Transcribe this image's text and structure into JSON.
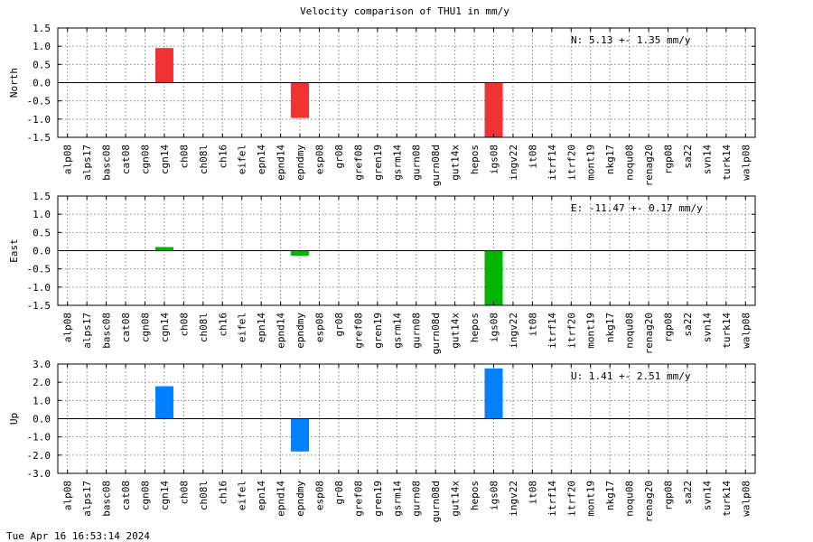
{
  "title": "Velocity comparison of THU1 in mm/y",
  "timestamp": "Tue Apr 16 16:53:14 2024",
  "chart_data": [
    {
      "type": "bar",
      "ylabel": "North",
      "annotation": "N:   5.13 +-  1.35 mm/y",
      "color": "#f03232",
      "ylim": [
        -1.5,
        1.5
      ],
      "yticks": [
        1.5,
        1.0,
        0.5,
        0.0,
        -0.5,
        -1.0,
        -1.5
      ],
      "yticklabels": [
        "1.5",
        "1.0",
        "0.5",
        "0.0",
        "-0.5",
        "-1.0",
        "-1.5"
      ],
      "grid": true,
      "categories": [
        "alp08",
        "alps17",
        "basc08",
        "cat08",
        "cgn08",
        "cgn14",
        "ch08",
        "ch08l",
        "ch16",
        "eifel",
        "epn14",
        "epnd14",
        "epndmy",
        "esp08",
        "gr08",
        "gref08",
        "gren19",
        "gsrm14",
        "gurn08",
        "gurn08d",
        "gut14x",
        "hepos",
        "igs08",
        "ingv22",
        "it08",
        "itrf14",
        "itrf20",
        "mont19",
        "nkg17",
        "noqu08",
        "renag20",
        "rgp08",
        "sa22",
        "svn14",
        "turk14",
        "walp08"
      ],
      "values": [
        null,
        null,
        null,
        null,
        null,
        0.95,
        null,
        null,
        null,
        null,
        null,
        null,
        -0.97,
        null,
        null,
        null,
        null,
        null,
        null,
        null,
        null,
        null,
        -1.5,
        null,
        null,
        null,
        null,
        null,
        null,
        null,
        null,
        null,
        null,
        null,
        null,
        null
      ]
    },
    {
      "type": "bar",
      "ylabel": "East",
      "annotation": "E: -11.47 +-  0.17 mm/y",
      "color": "#00b400",
      "ylim": [
        -1.5,
        1.5
      ],
      "yticks": [
        1.5,
        1.0,
        0.5,
        0.0,
        -0.5,
        -1.0,
        -1.5
      ],
      "yticklabels": [
        "1.5",
        "1.0",
        "0.5",
        "0.0",
        "-0.5",
        "-1.0",
        "-1.5"
      ],
      "grid": true,
      "categories": [
        "alp08",
        "alps17",
        "basc08",
        "cat08",
        "cgn08",
        "cgn14",
        "ch08",
        "ch08l",
        "ch16",
        "eifel",
        "epn14",
        "epnd14",
        "epndmy",
        "esp08",
        "gr08",
        "gref08",
        "gren19",
        "gsrm14",
        "gurn08",
        "gurn08d",
        "gut14x",
        "hepos",
        "igs08",
        "ingv22",
        "it08",
        "itrf14",
        "itrf20",
        "mont19",
        "nkg17",
        "noqu08",
        "renag20",
        "rgp08",
        "sa22",
        "svn14",
        "turk14",
        "walp08"
      ],
      "values": [
        null,
        null,
        null,
        null,
        null,
        0.1,
        null,
        null,
        null,
        null,
        null,
        null,
        -0.14,
        null,
        null,
        null,
        null,
        null,
        null,
        null,
        null,
        null,
        -1.5,
        null,
        null,
        null,
        null,
        null,
        null,
        null,
        null,
        null,
        null,
        null,
        null,
        null
      ]
    },
    {
      "type": "bar",
      "ylabel": "Up",
      "annotation": "U:   1.41 +-  2.51 mm/y",
      "color": "#0080ff",
      "ylim": [
        -3.0,
        3.0
      ],
      "yticks": [
        3.0,
        2.0,
        1.0,
        0.0,
        -1.0,
        -2.0,
        -3.0
      ],
      "yticklabels": [
        "3.0",
        "2.0",
        "1.0",
        "0.0",
        "-1.0",
        "-2.0",
        "-3.0"
      ],
      "grid": true,
      "categories": [
        "alp08",
        "alps17",
        "basc08",
        "cat08",
        "cgn08",
        "cgn14",
        "ch08",
        "ch08l",
        "ch16",
        "eifel",
        "epn14",
        "epnd14",
        "epndmy",
        "esp08",
        "gr08",
        "gref08",
        "gren19",
        "gsrm14",
        "gurn08",
        "gurn08d",
        "gut14x",
        "hepos",
        "igs08",
        "ingv22",
        "it08",
        "itrf14",
        "itrf20",
        "mont19",
        "nkg17",
        "noqu08",
        "renag20",
        "rgp08",
        "sa22",
        "svn14",
        "turk14",
        "walp08"
      ],
      "values": [
        null,
        null,
        null,
        null,
        null,
        1.78,
        null,
        null,
        null,
        null,
        null,
        null,
        -1.8,
        null,
        null,
        null,
        null,
        null,
        null,
        null,
        null,
        null,
        2.76,
        null,
        null,
        null,
        null,
        null,
        null,
        null,
        null,
        null,
        null,
        null,
        null,
        null
      ]
    }
  ]
}
